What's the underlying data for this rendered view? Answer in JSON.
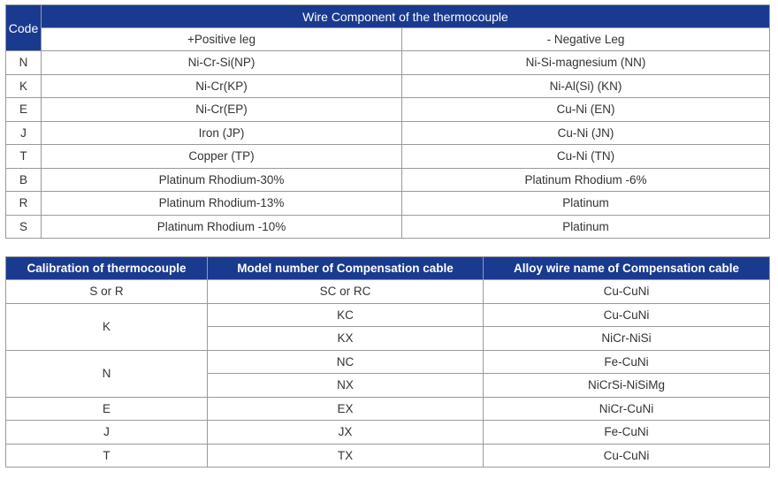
{
  "table1": {
    "code_label": "Code",
    "title": "Wire Component of the thermocouple",
    "pos_label": "+Positive leg",
    "neg_label": "- Negative Leg",
    "rows": [
      {
        "code": "N",
        "pos": "Ni-Cr-Si(NP)",
        "neg": "Ni-Si-magnesium (NN)"
      },
      {
        "code": "K",
        "pos": "Ni-Cr(KP)",
        "neg": "Ni-Al(Si) (KN)"
      },
      {
        "code": "E",
        "pos": "Ni-Cr(EP)",
        "neg": "Cu-Ni (EN)"
      },
      {
        "code": "J",
        "pos": "Iron (JP)",
        "neg": "Cu-Ni (JN)"
      },
      {
        "code": "T",
        "pos": "Copper (TP)",
        "neg": "Cu-Ni (TN)"
      },
      {
        "code": "B",
        "pos": "Platinum Rhodium-30%",
        "neg": "Platinum Rhodium -6%"
      },
      {
        "code": "R",
        "pos": "Platinum Rhodium-13%",
        "neg": "Platinum"
      },
      {
        "code": "S",
        "pos": "Platinum Rhodium -10%",
        "neg": "Platinum"
      }
    ]
  },
  "table2": {
    "headers": [
      "Calibration of thermocouple",
      "Model number of Compensation cable",
      "Alloy wire name of Compensation cable"
    ],
    "rows": [
      {
        "calib": "S or R",
        "model": "SC or RC",
        "alloy": "Cu-CuNi"
      },
      {
        "calib": "K",
        "model": "KC",
        "alloy": "Cu-CuNi"
      },
      {
        "calib": "",
        "model": "KX",
        "alloy": "NiCr-NiSi"
      },
      {
        "calib": "N",
        "model": "NC",
        "alloy": "Fe-CuNi"
      },
      {
        "calib": "",
        "model": "NX",
        "alloy": "NiCrSi-NiSiMg"
      },
      {
        "calib": "E",
        "model": "EX",
        "alloy": "NiCr-CuNi"
      },
      {
        "calib": "J",
        "model": "JX",
        "alloy": "Fe-CuNi"
      },
      {
        "calib": "T",
        "model": "TX",
        "alloy": "Cu-CuNi"
      }
    ]
  }
}
